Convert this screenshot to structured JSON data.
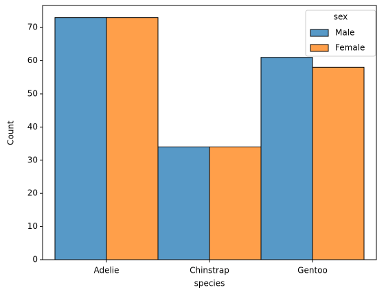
{
  "chart_data": {
    "type": "bar",
    "categories": [
      "Adelie",
      "Chinstrap",
      "Gentoo"
    ],
    "series": [
      {
        "name": "Male",
        "color": "#1f77b4",
        "values": [
          73,
          34,
          61
        ]
      },
      {
        "name": "Female",
        "color": "#ff7f0e",
        "values": [
          73,
          34,
          58
        ]
      }
    ],
    "x_label": "species",
    "y_label": "Count",
    "legend_title": "sex",
    "legend_position": "upper right",
    "ylim": [
      0,
      76.65
    ],
    "yticks": [
      0,
      10,
      20,
      30,
      40,
      50,
      60,
      70
    ]
  }
}
